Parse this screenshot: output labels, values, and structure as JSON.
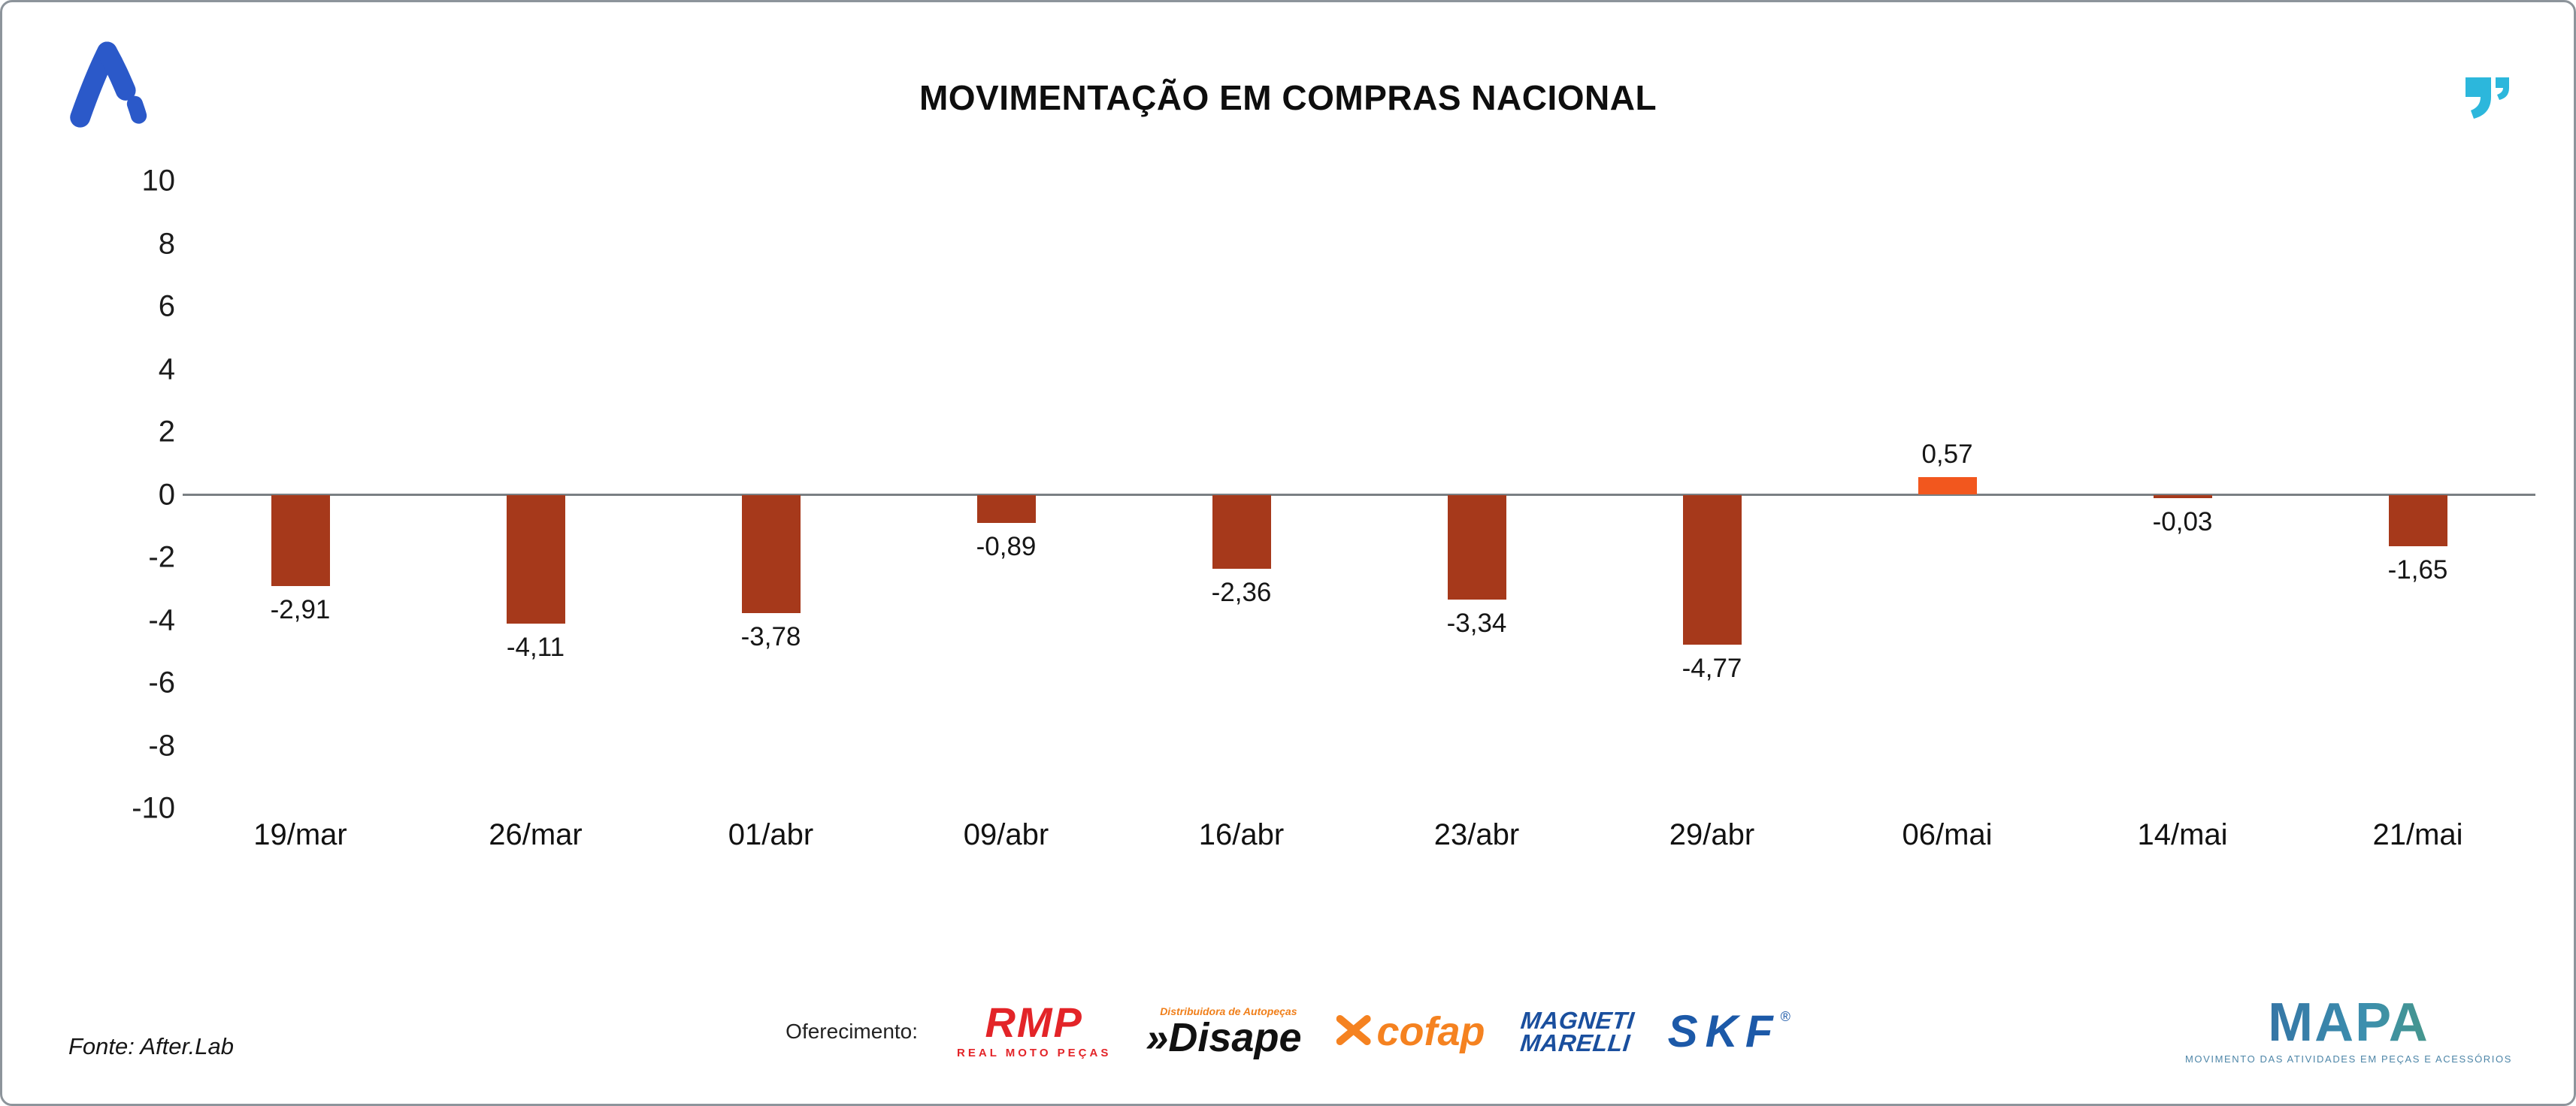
{
  "header": {
    "title": "MOVIMENTAÇÃO EM COMPRAS NACIONAL"
  },
  "chart_data": {
    "type": "bar",
    "title": "MOVIMENTAÇÃO EM COMPRAS NACIONAL",
    "categories": [
      "19/mar",
      "26/mar",
      "01/abr",
      "09/abr",
      "16/abr",
      "23/abr",
      "29/abr",
      "06/mai",
      "14/mai",
      "21/mai"
    ],
    "values": [
      -2.91,
      -4.11,
      -3.78,
      -0.89,
      -2.36,
      -3.34,
      -4.77,
      0.57,
      -0.03,
      -1.65
    ],
    "value_labels": [
      "-2,91",
      "-4,11",
      "-3,78",
      "-0,89",
      "-2,36",
      "-3,34",
      "-4,77",
      "0,57",
      "-0,03",
      "-1,65"
    ],
    "ylim": [
      -10,
      10
    ],
    "yticks": [
      10,
      8,
      6,
      4,
      2,
      0,
      -2,
      -4,
      -6,
      -8,
      -10
    ],
    "xlabel": "",
    "ylabel": "",
    "grid": false,
    "legend": false,
    "colors": {
      "negative": "#A6391B",
      "positive": "#F2571E",
      "zero_line": "#7a7f83"
    }
  },
  "footer": {
    "source": "Fonte: After.Lab",
    "offer_label": "Oferecimento:",
    "sponsors": {
      "rmp": {
        "name": "RMP",
        "subtitle": "REAL MOTO PEÇAS"
      },
      "disape": {
        "prefix": "»",
        "name": "Disape",
        "subtitle": "Distribuidora de Autopeças"
      },
      "cofap": {
        "name": "cofap"
      },
      "magneti": {
        "line1": "MAGNETI",
        "line2": "MARELLI"
      },
      "skf": {
        "name": "SKF",
        "reg": "®"
      },
      "mapa": {
        "name": "MAPA",
        "subtitle": "MOVIMENTO DAS ATIVIDADES EM PEÇAS E ACESSÓRIOS"
      }
    }
  }
}
